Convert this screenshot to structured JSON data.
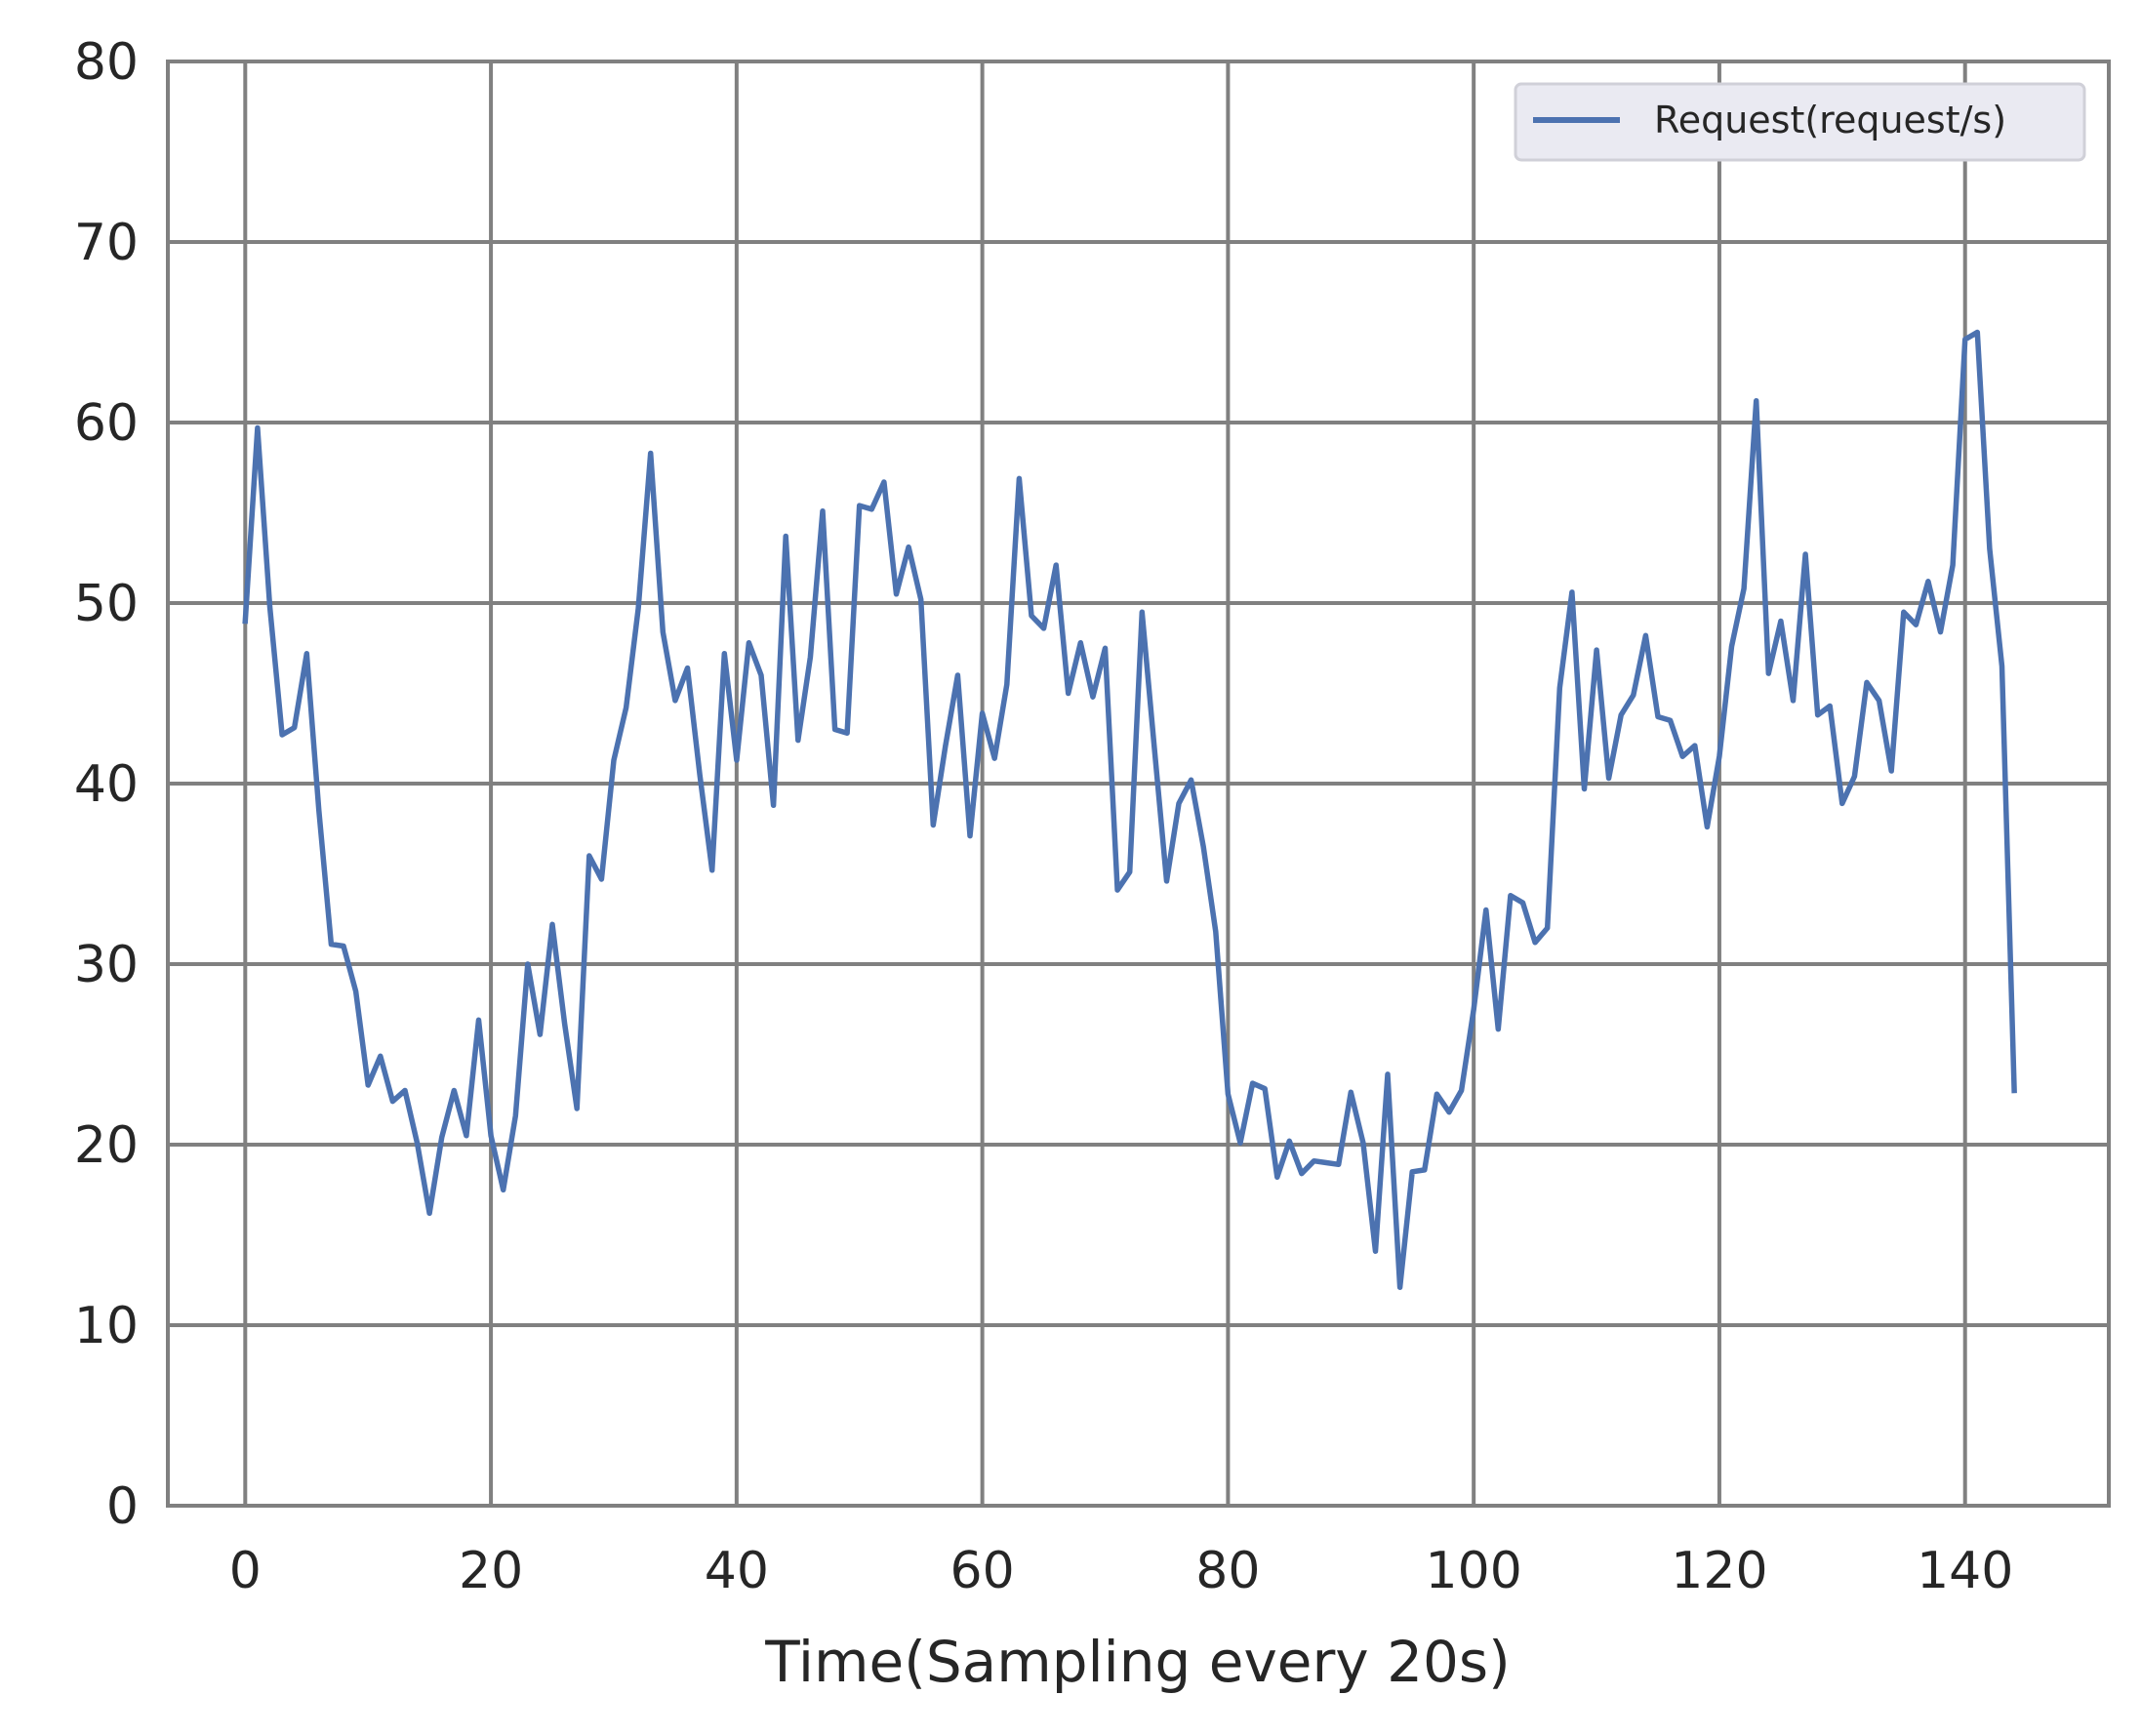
{
  "chart_data": {
    "type": "line",
    "title": "",
    "xlabel": "Time(Sampling every 20s)",
    "ylabel": "",
    "xlim": [
      -6.3,
      151.7
    ],
    "ylim": [
      0,
      80
    ],
    "xticks": [
      0,
      20,
      40,
      60,
      80,
      100,
      120,
      140
    ],
    "yticks": [
      0,
      10,
      20,
      30,
      40,
      50,
      60,
      70,
      80
    ],
    "grid": true,
    "legend_position": "top-right",
    "colors": {
      "series": "#4c72b0",
      "grid": "#808080",
      "axes": "#808080",
      "legend_bg": "#eaeaf2"
    },
    "series": [
      {
        "name": "Request(request/s)",
        "x": [
          0,
          1,
          2,
          3,
          4,
          5,
          6,
          7,
          8,
          9,
          10,
          11,
          12,
          13,
          14,
          15,
          16,
          17,
          18,
          19,
          20,
          21,
          22,
          23,
          24,
          25,
          26,
          27,
          28,
          29,
          30,
          31,
          32,
          33,
          34,
          35,
          36,
          37,
          38,
          39,
          40,
          41,
          42,
          43,
          44,
          45,
          46,
          47,
          48,
          49,
          50,
          51,
          52,
          53,
          54,
          55,
          56,
          57,
          58,
          59,
          60,
          61,
          62,
          63,
          64,
          65,
          66,
          67,
          68,
          69,
          70,
          71,
          72,
          73,
          74,
          75,
          76,
          77,
          78,
          79,
          80,
          81,
          82,
          83,
          84,
          85,
          86,
          87,
          88,
          89,
          90,
          91,
          92,
          93,
          94,
          95,
          96,
          97,
          98,
          99,
          100,
          101,
          102,
          103,
          104,
          105,
          106,
          107,
          108,
          109,
          110,
          111,
          112,
          113,
          114,
          115,
          116,
          117,
          118,
          119,
          120,
          121,
          122,
          123,
          124,
          125,
          126,
          127,
          128,
          129,
          130,
          131,
          132,
          133,
          134,
          135,
          136,
          137,
          138,
          139,
          140,
          141,
          142,
          143,
          144
        ],
        "values": [
          49.0,
          59.7,
          49.8,
          42.7,
          43.1,
          47.2,
          38.5,
          31.1,
          31.0,
          28.5,
          23.3,
          24.9,
          22.4,
          23.0,
          20.1,
          16.2,
          20.4,
          23.0,
          20.5,
          26.9,
          20.5,
          17.5,
          21.6,
          30.0,
          26.1,
          32.2,
          26.7,
          22.0,
          36.0,
          34.7,
          41.3,
          44.2,
          49.7,
          58.3,
          48.4,
          44.6,
          46.4,
          40.5,
          35.2,
          47.2,
          41.3,
          47.8,
          46.0,
          38.8,
          53.7,
          42.4,
          47.0,
          55.1,
          43.0,
          42.8,
          55.4,
          55.2,
          56.7,
          50.5,
          53.1,
          50.2,
          37.7,
          42.1,
          46.0,
          37.1,
          43.9,
          41.4,
          45.5,
          56.9,
          49.3,
          48.6,
          52.1,
          45.0,
          47.8,
          44.8,
          47.5,
          34.1,
          35.1,
          49.5,
          42.0,
          34.6,
          38.9,
          40.2,
          36.5,
          31.8,
          22.8,
          20.1,
          23.4,
          23.1,
          18.2,
          20.2,
          18.4,
          19.1,
          19.0,
          18.9,
          22.9,
          20.1,
          14.1,
          23.9,
          12.1,
          18.5,
          18.6,
          22.8,
          21.8,
          23.0,
          27.5,
          33.0,
          26.4,
          33.8,
          33.4,
          31.2,
          32.0,
          45.3,
          50.6,
          39.7,
          47.4,
          40.3,
          43.8,
          44.9,
          48.2,
          43.7,
          43.5,
          41.5,
          42.1,
          37.6,
          41.5,
          47.6,
          50.8,
          61.2,
          46.1,
          49.0,
          44.6,
          52.7,
          43.8,
          44.3,
          38.9,
          40.4,
          45.6,
          44.6,
          40.7,
          49.5,
          48.8,
          51.2,
          48.4,
          52.1,
          64.6,
          65.0,
          53.0,
          46.5,
          23.0
        ]
      }
    ]
  }
}
